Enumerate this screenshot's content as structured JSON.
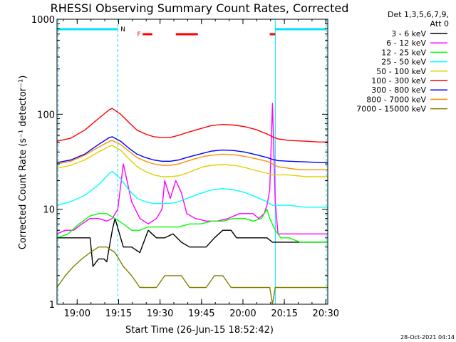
{
  "chart_data": {
    "type": "line",
    "title": "RHESSI Observing Summary Count Rates, Corrected",
    "xlabel": "Start Time (26-Jun-15 18:52:42)",
    "ylabel": "Corrected Count Rate (s⁻¹ detector⁻¹)",
    "yscale": "log",
    "ylim": [
      1,
      1000
    ],
    "xlim_minutes": [
      0,
      98
    ],
    "x_ticks": [
      {
        "m": 7.3,
        "label": "19:00"
      },
      {
        "m": 22.3,
        "label": "19:15"
      },
      {
        "m": 37.3,
        "label": "19:30"
      },
      {
        "m": 52.3,
        "label": "19:45"
      },
      {
        "m": 67.3,
        "label": "20:00"
      },
      {
        "m": 82.3,
        "label": "20:15"
      },
      {
        "m": 97.3,
        "label": "20:30"
      }
    ],
    "y_ticks": [
      {
        "v": 1,
        "label": "1"
      },
      {
        "v": 10,
        "label": "10"
      },
      {
        "v": 100,
        "label": "100"
      },
      {
        "v": 1000,
        "label": "1000"
      }
    ],
    "legend_header": [
      "Det 1,3,5,6,7,9,",
      "Att 0"
    ],
    "series": [
      {
        "name": "3 - 6 keV",
        "color": "#000000",
        "x": [
          0,
          3,
          6,
          9,
          12,
          13,
          15,
          17,
          18,
          20,
          21,
          24,
          27,
          30,
          33,
          36,
          39,
          42,
          45,
          48,
          51,
          54,
          57,
          60,
          63,
          65,
          66,
          68,
          71,
          74,
          76,
          78,
          80,
          82,
          84,
          87,
          90,
          93,
          96,
          98
        ],
        "values": [
          5,
          5,
          5,
          5,
          5,
          2.5,
          3,
          3,
          2.8,
          6,
          8,
          4,
          4,
          3.5,
          6,
          5,
          5,
          5.5,
          4.5,
          4,
          4,
          4,
          5,
          6,
          6,
          5,
          5,
          5,
          5,
          5,
          5,
          4.5,
          4.5,
          4.5,
          4.5,
          4.5,
          4.5,
          4.5,
          4.5,
          4.5
        ]
      },
      {
        "name": "6 - 12 keV",
        "color": "#ff00ff",
        "x": [
          0,
          3,
          6,
          9,
          12,
          15,
          18,
          20,
          22,
          24,
          27,
          30,
          33,
          36,
          38,
          39,
          41,
          43,
          45,
          47,
          50,
          54,
          58,
          62,
          66,
          69,
          71,
          73,
          75,
          76,
          77,
          78,
          79,
          80,
          82,
          85,
          88,
          92,
          96,
          98
        ],
        "values": [
          5.5,
          6,
          6,
          7,
          8,
          8,
          7.5,
          8,
          10,
          30,
          12,
          8,
          7,
          8,
          10,
          20,
          13,
          20,
          15,
          9,
          8,
          7.5,
          7.5,
          8,
          9,
          9,
          9,
          8,
          9,
          11,
          16,
          130,
          12,
          5.5,
          5.5,
          5.5,
          5.5,
          5.5,
          5.5,
          5.5
        ]
      },
      {
        "name": "12 - 25 keV",
        "color": "#00ff00",
        "x": [
          0,
          4,
          8,
          12,
          15,
          18,
          21,
          24,
          27,
          30,
          33,
          36,
          40,
          44,
          48,
          52,
          56,
          60,
          64,
          68,
          71,
          74,
          76,
          77,
          79,
          81,
          84,
          88,
          92,
          96,
          98
        ],
        "values": [
          5,
          5.5,
          7,
          8.5,
          9,
          9,
          8,
          7,
          6,
          6,
          6.5,
          6.5,
          6.5,
          6.5,
          7,
          7,
          7.5,
          7.5,
          8,
          8,
          7.5,
          8,
          10,
          8,
          6,
          5,
          5,
          4.5,
          4.5,
          4.5,
          4.5
        ]
      },
      {
        "name": "25 - 50 keV",
        "color": "#00ffff",
        "x": [
          0,
          5,
          10,
          15,
          19,
          20,
          23,
          26,
          29,
          32,
          35,
          38,
          41,
          44,
          47,
          50,
          53,
          56,
          60,
          64,
          68,
          72,
          76,
          77,
          78,
          80,
          84,
          90,
          95,
          98
        ],
        "values": [
          11,
          12,
          14,
          18,
          24,
          25,
          21,
          16,
          13,
          12,
          11.5,
          11.5,
          11.5,
          12,
          13,
          14,
          15,
          16,
          16.5,
          16,
          15,
          13.5,
          12,
          11.5,
          11,
          11,
          11,
          10.5,
          10.5,
          10.5
        ]
      },
      {
        "name": "50 - 100 keV",
        "color": "#e0d000",
        "x": [
          0,
          5,
          10,
          15,
          19,
          20,
          23,
          26,
          29,
          32,
          35,
          38,
          41,
          44,
          47,
          50,
          53,
          56,
          60,
          64,
          68,
          72,
          76,
          78,
          80,
          84,
          90,
          95,
          98
        ],
        "values": [
          27,
          29,
          33,
          40,
          46,
          47,
          42,
          34,
          28,
          25,
          23,
          22,
          22,
          22.5,
          24,
          26,
          28,
          29,
          29.5,
          29,
          27.5,
          25.5,
          24,
          23,
          23,
          23,
          22,
          22,
          22
        ]
      },
      {
        "name": "100 - 300 keV",
        "color": "#ff0000",
        "x": [
          0,
          5,
          10,
          15,
          19,
          20,
          23,
          26,
          29,
          32,
          35,
          38,
          41,
          44,
          47,
          50,
          53,
          56,
          60,
          64,
          68,
          72,
          76,
          78,
          80,
          84,
          90,
          95,
          98
        ],
        "values": [
          52,
          56,
          68,
          90,
          112,
          115,
          100,
          82,
          68,
          62,
          58,
          57,
          57,
          60,
          64,
          68,
          72,
          76,
          78,
          77,
          74,
          69,
          62,
          58,
          55,
          53,
          52,
          51,
          51
        ]
      },
      {
        "name": "300 - 800 keV",
        "color": "#0000ff",
        "x": [
          0,
          5,
          10,
          15,
          19,
          20,
          23,
          26,
          29,
          32,
          35,
          38,
          41,
          44,
          47,
          50,
          53,
          56,
          60,
          64,
          68,
          72,
          76,
          78,
          80,
          84,
          90,
          95,
          98
        ],
        "values": [
          31,
          33,
          38,
          48,
          57,
          58,
          52,
          44,
          38,
          35,
          33,
          32,
          32,
          33,
          35,
          37,
          39,
          41,
          42,
          41.5,
          40,
          37.5,
          35,
          33.5,
          32.5,
          32,
          31.5,
          31,
          31
        ]
      },
      {
        "name": "800 - 7000 keV",
        "color": "#ff9000",
        "x": [
          0,
          5,
          10,
          15,
          19,
          20,
          23,
          26,
          29,
          32,
          35,
          38,
          41,
          44,
          47,
          50,
          53,
          56,
          60,
          64,
          68,
          72,
          76,
          78,
          80,
          84,
          88,
          89,
          90,
          92,
          95,
          98
        ],
        "values": [
          30,
          32,
          37,
          45,
          52,
          53,
          48,
          41,
          35,
          32,
          30,
          29,
          29,
          30,
          32,
          34,
          36,
          37,
          38,
          37.5,
          36,
          34,
          32,
          30,
          28,
          27,
          26,
          26,
          26,
          26,
          26,
          26
        ]
      },
      {
        "name": "7000 - 15000 keV",
        "color": "#808000",
        "x": [
          0,
          3,
          6,
          9,
          12,
          15,
          18,
          21,
          24,
          27,
          30,
          33,
          36,
          39,
          42,
          45,
          48,
          51,
          54,
          57,
          60,
          63,
          66,
          69,
          72,
          75,
          77,
          78,
          79,
          81,
          84,
          87,
          90,
          93,
          96,
          98
        ],
        "values": [
          1.5,
          2,
          2.5,
          3,
          3.5,
          4,
          4,
          3.5,
          2.5,
          2,
          1.5,
          1.5,
          1.5,
          2,
          2,
          2,
          1.5,
          1.5,
          1.5,
          2,
          2,
          1.5,
          1.5,
          1.5,
          1.5,
          1.5,
          1.5,
          1,
          1.5,
          1.5,
          1.5,
          1.5,
          1.5,
          1.5,
          1.5,
          1.5
        ]
      }
    ],
    "annotations": {
      "night_label": "N",
      "flare_label": "F"
    },
    "footer_date": "28-Oct-2021 04:14"
  }
}
